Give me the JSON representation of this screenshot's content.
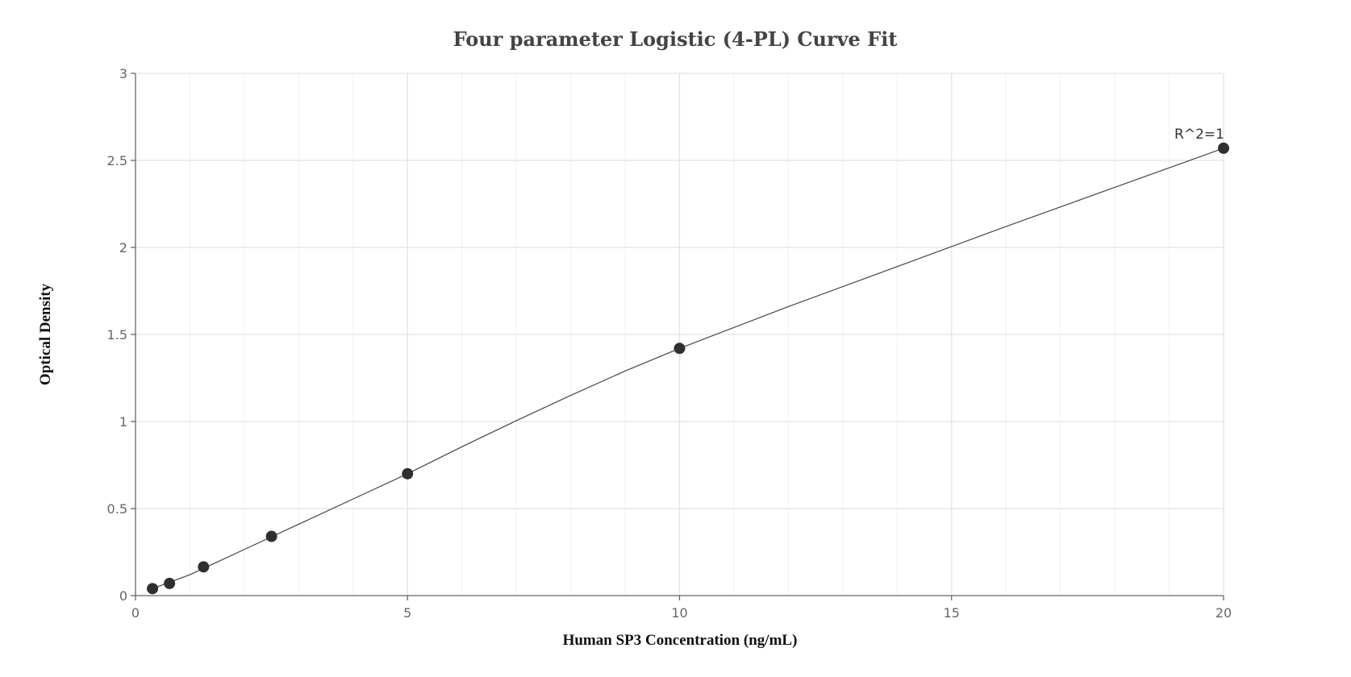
{
  "chart_data": {
    "type": "scatter",
    "title": "Four parameter Logistic (4-PL) Curve Fit",
    "xlabel": "Human SP3 Concentration (ng/mL)",
    "ylabel": "Optical Density",
    "xlim": [
      0,
      20
    ],
    "ylim": [
      0,
      3
    ],
    "x_ticks": [
      0,
      5,
      10,
      15,
      20
    ],
    "y_ticks": [
      0,
      0.5,
      1,
      1.5,
      2,
      2.5,
      3
    ],
    "x_tick_labels": [
      "0",
      "5",
      "10",
      "15",
      "20"
    ],
    "y_tick_labels": [
      "0",
      "0.5",
      "1",
      "1.5",
      "2",
      "2.5",
      "3"
    ],
    "grid": true,
    "series": [
      {
        "points": [
          {
            "x": 0.3125,
            "y": 0.04
          },
          {
            "x": 0.625,
            "y": 0.07
          },
          {
            "x": 1.25,
            "y": 0.165
          },
          {
            "x": 2.5,
            "y": 0.34
          },
          {
            "x": 5,
            "y": 0.7
          },
          {
            "x": 10,
            "y": 1.42
          },
          {
            "x": 20,
            "y": 2.57
          }
        ]
      }
    ],
    "fit_curve": [
      {
        "x": 0.3125,
        "y": 0.04
      },
      {
        "x": 1,
        "y": 0.12
      },
      {
        "x": 2,
        "y": 0.265
      },
      {
        "x": 3,
        "y": 0.41
      },
      {
        "x": 4,
        "y": 0.555
      },
      {
        "x": 5,
        "y": 0.7
      },
      {
        "x": 6,
        "y": 0.855
      },
      {
        "x": 7,
        "y": 1.005
      },
      {
        "x": 8,
        "y": 1.15
      },
      {
        "x": 9,
        "y": 1.29
      },
      {
        "x": 10,
        "y": 1.42
      },
      {
        "x": 12,
        "y": 1.66
      },
      {
        "x": 14,
        "y": 1.89
      },
      {
        "x": 16,
        "y": 2.12
      },
      {
        "x": 18,
        "y": 2.345
      },
      {
        "x": 20,
        "y": 2.57
      }
    ],
    "annotations": [
      {
        "text": "R^2=1",
        "x": 20,
        "y": 2.57
      }
    ],
    "colors": {
      "point": "#2f2f2f",
      "curve": "#444444",
      "grid": "#e3e3e3"
    }
  }
}
